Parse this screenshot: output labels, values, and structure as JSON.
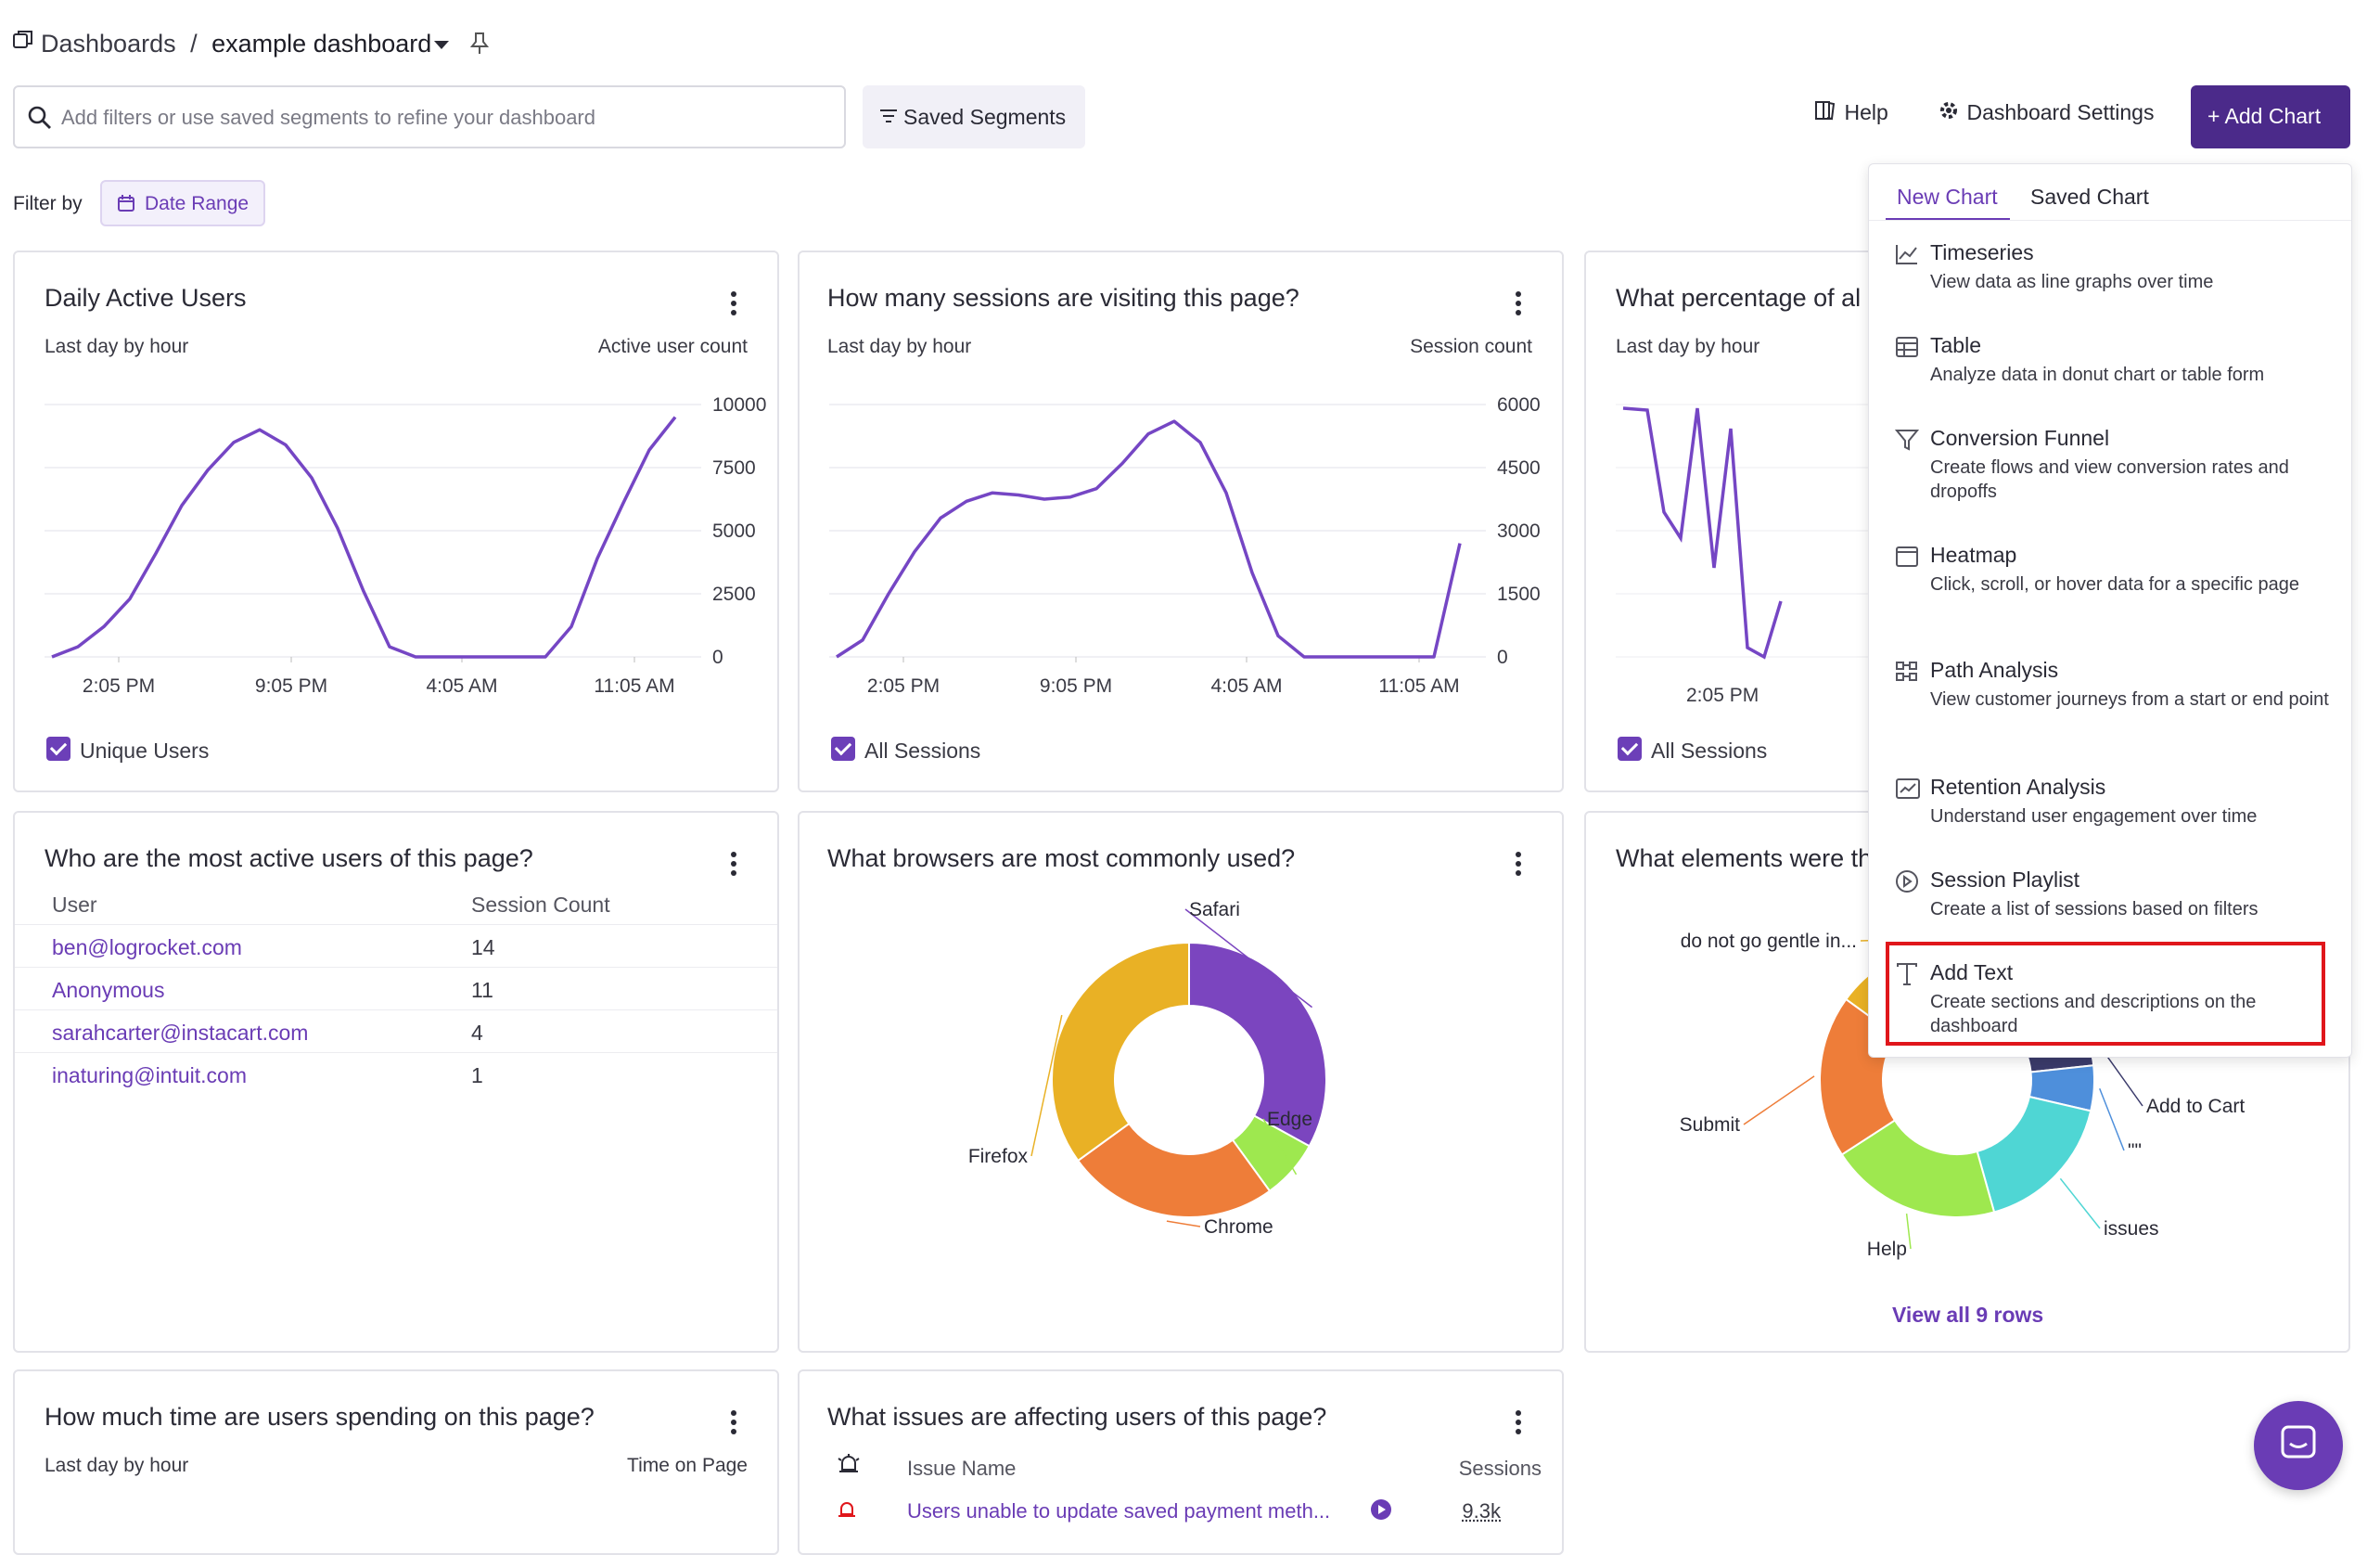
{
  "breadcrumb": {
    "root": "Dashboards",
    "sep": "/",
    "current": "example dashboard"
  },
  "search": {
    "placeholder": "Add filters or use saved segments to refine your dashboard"
  },
  "saved_segments_label": "Saved Segments",
  "header": {
    "help_label": "Help",
    "settings_label": "Dashboard Settings",
    "add_chart_label": "+ Add Chart"
  },
  "filter": {
    "label": "Filter by",
    "date_range_label": "Date Range"
  },
  "colors": {
    "accent": "#4b2a8a",
    "purple": "#6a3cb5",
    "line": "#7546c4",
    "highlight": "#e0161b"
  },
  "dropdown": {
    "tabs": [
      "New Chart",
      "Saved Chart"
    ],
    "active_tab": "New Chart",
    "items": [
      {
        "icon": "timeseries-icon",
        "title": "Timeseries",
        "desc": "View data as line graphs over time"
      },
      {
        "icon": "table-icon",
        "title": "Table",
        "desc": "Analyze data in donut chart or table form"
      },
      {
        "icon": "funnel-icon",
        "title": "Conversion Funnel",
        "desc": "Create flows and view conversion rates and dropoffs"
      },
      {
        "icon": "heatmap-icon",
        "title": "Heatmap",
        "desc": "Click, scroll, or hover data for a specific page"
      },
      {
        "icon": "path-icon",
        "title": "Path Analysis",
        "desc": "View customer journeys from a start or end point"
      },
      {
        "icon": "retention-icon",
        "title": "Retention Analysis",
        "desc": "Understand user engagement over time"
      },
      {
        "icon": "playlist-icon",
        "title": "Session Playlist",
        "desc": "Create a list of sessions based on filters"
      },
      {
        "icon": "text-icon",
        "title": "Add Text",
        "desc": "Create sections and descriptions on the dashboard",
        "highlighted": true
      }
    ]
  },
  "cards": {
    "dau": {
      "title": "Daily Active Users",
      "subtitle": "Last day by hour",
      "metric": "Active user count",
      "legend": "Unique Users"
    },
    "sessions": {
      "title": "How many sessions are visiting this page?",
      "subtitle": "Last day by hour",
      "metric": "Session count",
      "legend": "All Sessions"
    },
    "percentage": {
      "title": "What percentage of al",
      "subtitle": "Last day by hour",
      "legend": "All Sessions",
      "xtick": "2:05 PM"
    },
    "active_users": {
      "title": "Who are the most active users of this page?",
      "headers": [
        "User",
        "Session Count"
      ],
      "rows": [
        [
          "ben@logrocket.com",
          "14"
        ],
        [
          "Anonymous",
          "11"
        ],
        [
          "sarahcarter@instacart.com",
          "4"
        ],
        [
          "inaturing@intuit.com",
          "1"
        ]
      ]
    },
    "browsers": {
      "title": "What browsers are most commonly used?"
    },
    "elements": {
      "title": "What elements were th",
      "view_all": "View all 9 rows"
    },
    "time": {
      "title": "How much time are users spending on this page?",
      "subtitle": "Last day by hour",
      "metric": "Time on Page"
    },
    "issues": {
      "title": "What issues are affecting users of this page?",
      "headers": [
        "Issue Name",
        "Sessions"
      ],
      "rows": [
        [
          "Users unable to update saved payment meth...",
          "9.3k"
        ]
      ]
    }
  },
  "chart_data": [
    {
      "type": "line",
      "title": "Daily Active Users",
      "ylabel": "Active user count",
      "x_ticks": [
        "2:05 PM",
        "9:05 PM",
        "4:05 AM",
        "11:05 AM"
      ],
      "y_ticks": [
        "0",
        "2500",
        "5000",
        "7500",
        "10000"
      ],
      "ylim": [
        0,
        10000
      ],
      "series": [
        {
          "name": "Unique Users",
          "values": [
            0,
            400,
            1200,
            2300,
            4100,
            6000,
            7400,
            8500,
            9000,
            8400,
            7100,
            5100,
            2600,
            400,
            0,
            0,
            0,
            0,
            0,
            0,
            1200,
            3900,
            6100,
            8200,
            9500
          ]
        }
      ]
    },
    {
      "type": "line",
      "title": "How many sessions are visiting this page?",
      "ylabel": "Session count",
      "x_ticks": [
        "2:05 PM",
        "9:05 PM",
        "4:05 AM",
        "11:05 AM"
      ],
      "y_ticks": [
        "0",
        "1500",
        "3000",
        "4500",
        "6000"
      ],
      "ylim": [
        0,
        6000
      ],
      "series": [
        {
          "name": "All Sessions",
          "values": [
            0,
            400,
            1500,
            2500,
            3300,
            3700,
            3900,
            3850,
            3750,
            3800,
            4000,
            4600,
            5300,
            5600,
            5100,
            3900,
            2000,
            500,
            0,
            0,
            0,
            0,
            0,
            0,
            2700
          ]
        }
      ]
    },
    {
      "type": "pie",
      "title": "What browsers are most commonly used?",
      "labels": [
        "Safari",
        "Edge",
        "Chrome",
        "Firefox"
      ],
      "values": [
        33,
        7,
        25,
        35
      ],
      "colors": [
        "#7b45bf",
        "#9ee84f",
        "#ee7d39",
        "#e9b125"
      ]
    },
    {
      "type": "pie",
      "title": "What elements were th",
      "labels": [
        "do not go gentle in...",
        "Add to Cart",
        "\"\"",
        "issues",
        "Help",
        "Submit"
      ],
      "values": [
        30,
        6,
        5,
        16,
        19,
        18
      ],
      "colors": [
        "#e9b125",
        "#3b3b6b",
        "#4e8fdb",
        "#4fd6d4",
        "#9ee84f",
        "#ee7d39"
      ]
    }
  ]
}
